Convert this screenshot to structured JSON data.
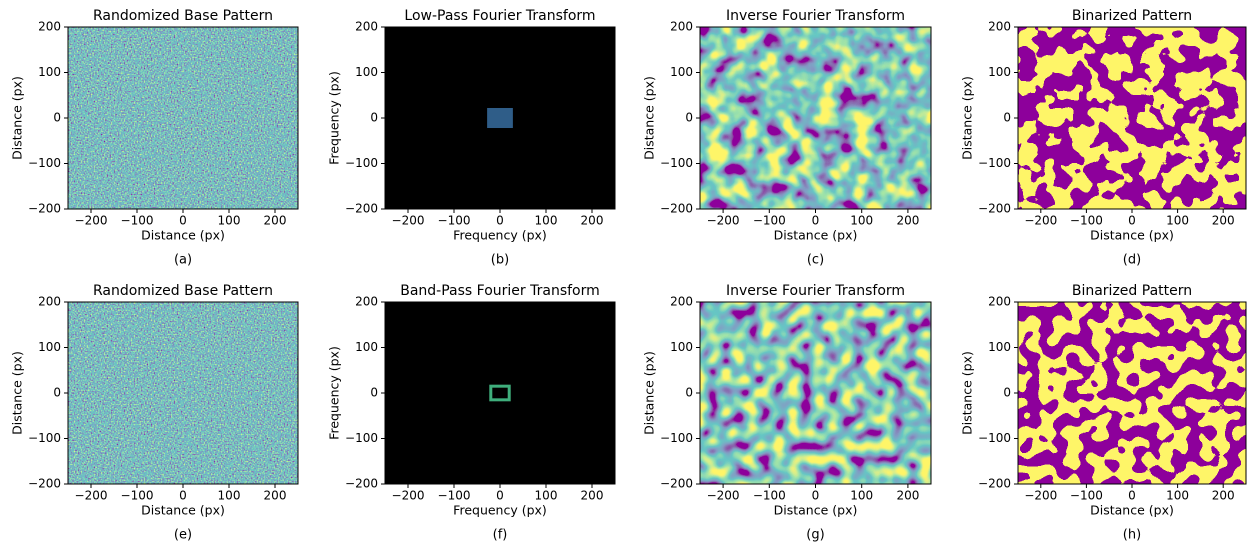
{
  "chart_data": [
    {
      "type": "image",
      "title": "Randomized Base Pattern",
      "xlabel": "Distance (px)",
      "ylabel": "Distance (px)",
      "caption": "(a)",
      "colormap": "viridis",
      "xlim": [
        -250,
        250
      ],
      "ylim": [
        -200,
        200
      ],
      "xticks": [
        {
          "value": -200,
          "label": "−200"
        },
        {
          "value": -100,
          "label": "−100"
        },
        0,
        100,
        200
      ],
      "yticks": [
        {
          "value": -200,
          "label": "−200"
        },
        {
          "value": -100,
          "label": "−100"
        },
        0,
        100,
        200
      ]
    },
    {
      "type": "image",
      "title": "Low-Pass Fourier Transform",
      "xlabel": "Frequency (px)",
      "ylabel": "Frequency (px)",
      "caption": "(b)",
      "colormap": "black",
      "xlim": [
        -250,
        250
      ],
      "ylim": [
        -200,
        200
      ],
      "xticks": [
        {
          "value": -200,
          "label": "−200"
        },
        {
          "value": -100,
          "label": "−100"
        },
        0,
        100,
        200
      ],
      "yticks": [
        {
          "value": -200,
          "label": "−200"
        },
        {
          "value": -100,
          "label": "−100"
        },
        0,
        100,
        200
      ],
      "passband": {
        "x": [
          -28,
          28
        ],
        "y": [
          -22,
          22
        ],
        "color": "#2f5d88",
        "style": "filled"
      }
    },
    {
      "type": "image",
      "title": "Inverse Fourier Transform",
      "xlabel": "Distance (px)",
      "ylabel": "Distance (px)",
      "caption": "(c)",
      "colormap": "viridis",
      "xlim": [
        -250,
        250
      ],
      "ylim": [
        -200,
        200
      ],
      "xticks": [
        {
          "value": -200,
          "label": "−200"
        },
        {
          "value": -100,
          "label": "−100"
        },
        0,
        100,
        200
      ],
      "yticks": [
        {
          "value": -200,
          "label": "−200"
        },
        {
          "value": -100,
          "label": "−100"
        },
        0,
        100,
        200
      ]
    },
    {
      "type": "image",
      "title": "Binarized Pattern",
      "xlabel": "Distance (px)",
      "ylabel": "Distance (px)",
      "caption": "(d)",
      "colormap": "binary-viridis",
      "xlim": [
        -250,
        250
      ],
      "ylim": [
        -200,
        200
      ],
      "xticks": [
        {
          "value": -200,
          "label": "−200"
        },
        {
          "value": -100,
          "label": "−100"
        },
        0,
        100,
        200
      ],
      "yticks": [
        {
          "value": -200,
          "label": "−200"
        },
        {
          "value": -100,
          "label": "−100"
        },
        0,
        100,
        200
      ]
    },
    {
      "type": "image",
      "title": "Randomized Base Pattern",
      "xlabel": "Distance (px)",
      "ylabel": "Distance (px)",
      "caption": "(e)",
      "colormap": "viridis",
      "xlim": [
        -250,
        250
      ],
      "ylim": [
        -200,
        200
      ],
      "xticks": [
        {
          "value": -200,
          "label": "−200"
        },
        {
          "value": -100,
          "label": "−100"
        },
        0,
        100,
        200
      ],
      "yticks": [
        {
          "value": -200,
          "label": "−200"
        },
        {
          "value": -100,
          "label": "−100"
        },
        0,
        100,
        200
      ]
    },
    {
      "type": "image",
      "title": "Band-Pass Fourier Transform",
      "xlabel": "Frequency (px)",
      "ylabel": "Frequency (px)",
      "caption": "(f)",
      "colormap": "black",
      "xlim": [
        -250,
        250
      ],
      "ylim": [
        -200,
        200
      ],
      "xticks": [
        {
          "value": -200,
          "label": "−200"
        },
        {
          "value": -100,
          "label": "−100"
        },
        0,
        100,
        200
      ],
      "yticks": [
        {
          "value": -200,
          "label": "−200"
        },
        {
          "value": -100,
          "label": "−100"
        },
        0,
        100,
        200
      ],
      "passband": {
        "x": [
          -20,
          20
        ],
        "y": [
          -15,
          15
        ],
        "color": "#3fae7c",
        "style": "outline"
      }
    },
    {
      "type": "image",
      "title": "Inverse Fourier Transform",
      "xlabel": "Distance (px)",
      "ylabel": "Distance (px)",
      "caption": "(g)",
      "colormap": "viridis",
      "xlim": [
        -250,
        250
      ],
      "ylim": [
        -200,
        200
      ],
      "xticks": [
        {
          "value": -200,
          "label": "−200"
        },
        {
          "value": -100,
          "label": "−100"
        },
        0,
        100,
        200
      ],
      "yticks": [
        {
          "value": -200,
          "label": "−200"
        },
        {
          "value": -100,
          "label": "−100"
        },
        0,
        100,
        200
      ]
    },
    {
      "type": "image",
      "title": "Binarized Pattern",
      "xlabel": "Distance (px)",
      "ylabel": "Distance (px)",
      "caption": "(h)",
      "colormap": "binary-viridis",
      "xlim": [
        -250,
        250
      ],
      "ylim": [
        -200,
        200
      ],
      "xticks": [
        {
          "value": -200,
          "label": "−200"
        },
        {
          "value": -100,
          "label": "−100"
        },
        0,
        100,
        200
      ],
      "yticks": [
        {
          "value": -200,
          "label": "−200"
        },
        {
          "value": -100,
          "label": "−100"
        },
        0,
        100,
        200
      ]
    }
  ]
}
